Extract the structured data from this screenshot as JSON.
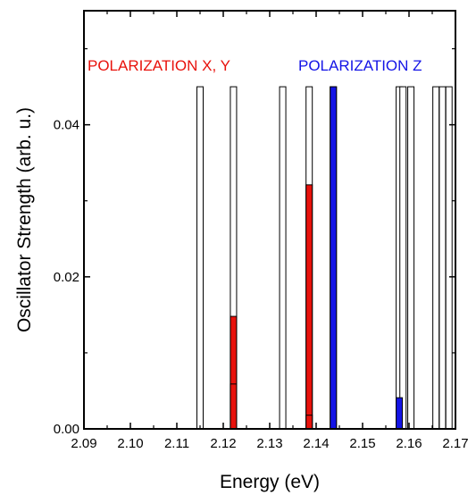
{
  "chart_data": {
    "type": "bar",
    "xlabel": "Energy (eV)",
    "ylabel": "Oscillator Strength (arb. u.)",
    "xlim": [
      2.09,
      2.17
    ],
    "ylim": [
      0.0,
      0.055
    ],
    "x_ticks": [
      "2.09",
      "2.10",
      "2.11",
      "2.12",
      "2.13",
      "2.14",
      "2.15",
      "2.16",
      "2.17"
    ],
    "x_tick_values": [
      2.09,
      2.1,
      2.11,
      2.12,
      2.13,
      2.14,
      2.15,
      2.16,
      2.17
    ],
    "y_ticks": [
      "0.00",
      "0.02",
      "0.04"
    ],
    "y_tick_values": [
      0.0,
      0.02,
      0.04
    ],
    "grid": false,
    "annotations": [
      {
        "text": "POLARIZATION X, Y",
        "color": "#e8120c"
      },
      {
        "text": "POLARIZATION Z",
        "color": "#1414e6"
      }
    ],
    "level_markers": {
      "description": "white bars mark transition energies",
      "color": "#ffffff",
      "height": 0.045,
      "x": [
        2.115,
        2.1222,
        2.1328,
        2.1385,
        2.1437,
        2.1579,
        2.1587,
        2.1604,
        2.1658,
        2.1672,
        2.1686
      ]
    },
    "series": [
      {
        "name": "POLARIZATION X, Y",
        "color": "#e8120c",
        "points": [
          {
            "x": 2.1222,
            "y": 0.0148
          },
          {
            "x": 2.1222,
            "y": 0.0059
          },
          {
            "x": 2.1385,
            "y": 0.0321
          },
          {
            "x": 2.1385,
            "y": 0.0018
          }
        ]
      },
      {
        "name": "POLARIZATION Z",
        "color": "#1414e6",
        "points": [
          {
            "x": 2.1437,
            "y": 0.045
          },
          {
            "x": 2.1579,
            "y": 0.0041
          }
        ]
      }
    ]
  }
}
